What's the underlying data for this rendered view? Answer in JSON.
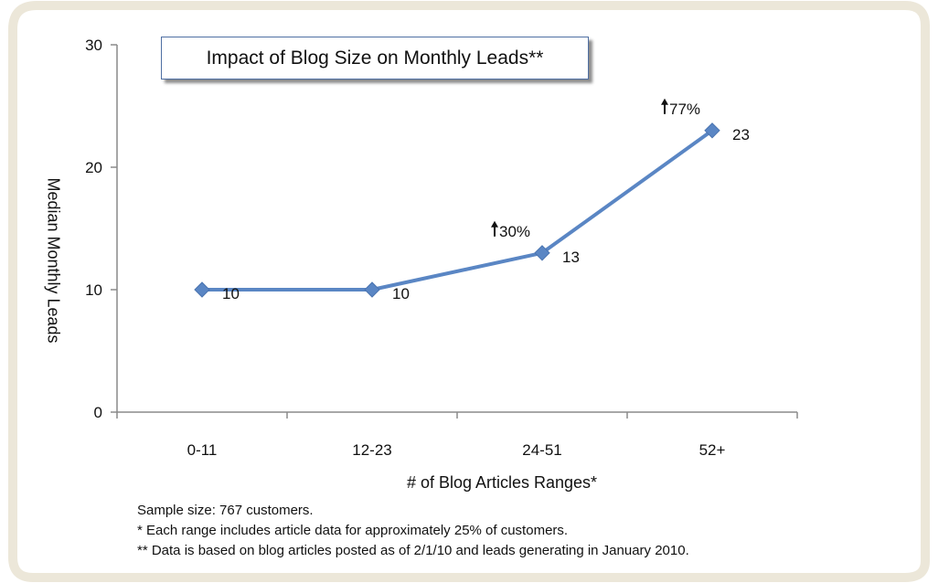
{
  "chart_data": {
    "type": "line",
    "title": "Impact of Blog Size on Monthly Leads**",
    "xlabel": "# of Blog Articles Ranges*",
    "ylabel": "Median Monthly Leads",
    "categories": [
      "0-11",
      "12-23",
      "24-51",
      "52+"
    ],
    "series": [
      {
        "values": [
          10,
          10,
          13,
          23
        ],
        "color": "#5a86c4"
      }
    ],
    "data_labels": [
      "10",
      "10",
      "13",
      "23"
    ],
    "annotations": [
      {
        "category": "24-51",
        "text": "30%",
        "icon": "up-arrow-icon"
      },
      {
        "category": "52+",
        "text": "77%",
        "icon": "up-arrow-icon"
      }
    ],
    "ylim": [
      0,
      30
    ],
    "yticks": [
      0,
      10,
      20,
      30
    ],
    "grid": false,
    "legend": "none"
  },
  "notes": [
    "Sample size: 767 customers.",
    "*  Each range includes article data for approximately 25% of customers.",
    "** Data is based on blog articles posted as of 2/1/10 and leads generating in January 2010."
  ],
  "colors": {
    "frame": "#ece7d9",
    "line": "#5a86c4",
    "title_border": "#4f6fa3"
  }
}
